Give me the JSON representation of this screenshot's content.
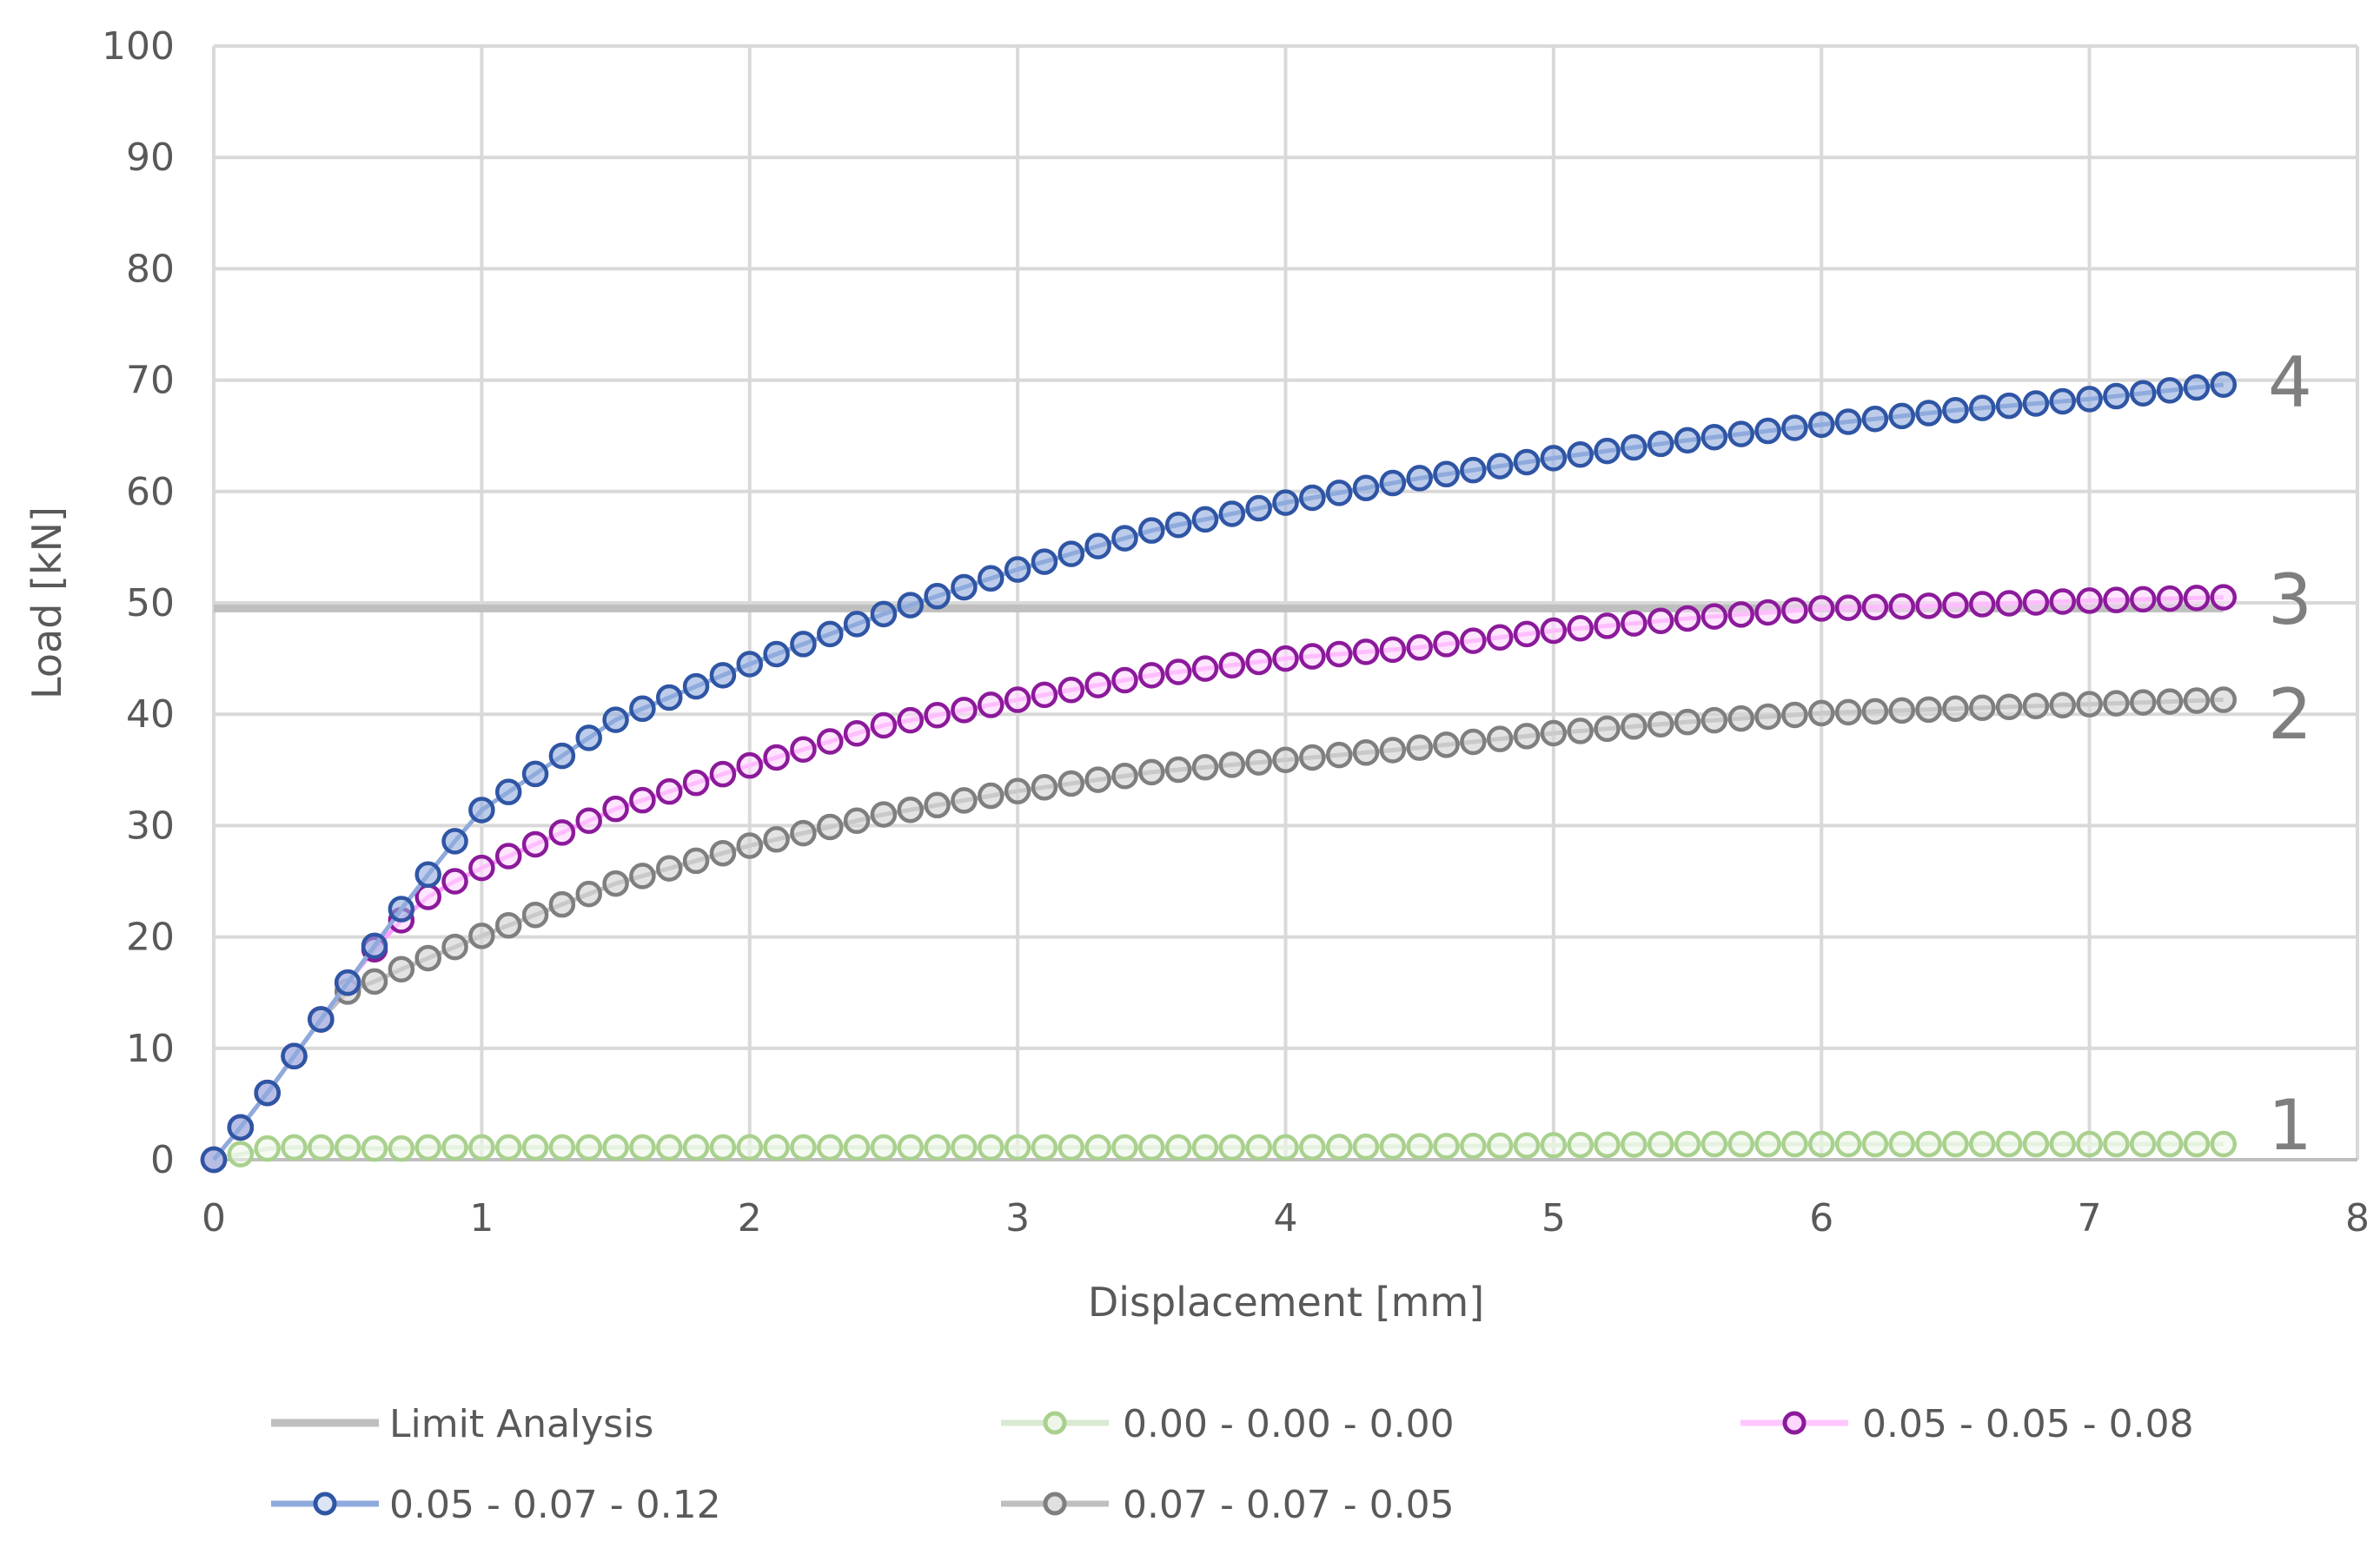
{
  "chart_data": {
    "type": "line",
    "title": "",
    "xlabel": "Displacement [mm]",
    "ylabel": "Load [kN]",
    "xlim": [
      0,
      8
    ],
    "ylim": [
      0,
      100
    ],
    "xticks": [
      "0",
      "1",
      "2",
      "3",
      "4",
      "5",
      "6",
      "7",
      "8"
    ],
    "yticks": [
      "0",
      "10",
      "20",
      "30",
      "40",
      "50",
      "60",
      "70",
      "80",
      "90",
      "100"
    ],
    "grid": true,
    "legend_position": "bottom",
    "x": [
      0,
      0.1,
      0.2,
      0.3,
      0.4,
      0.5,
      0.6,
      0.7,
      0.8,
      0.9,
      1.0,
      1.5,
      2.0,
      2.5,
      3.0,
      3.5,
      4.0,
      4.5,
      5.0,
      5.5,
      6.0,
      6.5,
      7.0,
      7.5
    ],
    "series": [
      {
        "name": "Limit Analysis",
        "style": "line",
        "color": "#bfbfbf",
        "values_x": [
          0,
          7.5
        ],
        "values": [
          49.5,
          49.5
        ]
      },
      {
        "name": "0.00 - 0.00 - 0.00",
        "style": "markers",
        "color": "#a9d18e",
        "label": "1",
        "values": [
          0,
          0.5,
          1.0,
          1.1,
          1.1,
          1.1,
          1.0,
          1.0,
          1.1,
          1.1,
          1.1,
          1.1,
          1.1,
          1.1,
          1.1,
          1.1,
          1.1,
          1.2,
          1.3,
          1.4,
          1.4,
          1.4,
          1.4,
          1.4
        ]
      },
      {
        "name": "0.05 - 0.05 - 0.08",
        "style": "markers",
        "color": "#8b1a9a",
        "fill": "#ffd6ff",
        "label": "3",
        "values": [
          0,
          2.9,
          6.0,
          9.3,
          12.6,
          15.9,
          18.9,
          21.5,
          23.6,
          25.0,
          26.2,
          31.5,
          35.4,
          39.0,
          41.3,
          43.5,
          45.0,
          46.0,
          47.5,
          48.6,
          49.5,
          49.8,
          50.2,
          50.5
        ]
      },
      {
        "name": "0.05 - 0.07 - 0.12",
        "style": "markers",
        "color": "#2f55a4",
        "fill": "#8faadc",
        "label": "4",
        "values": [
          0,
          2.9,
          6.0,
          9.3,
          12.6,
          15.9,
          19.2,
          22.5,
          25.6,
          28.6,
          31.4,
          39.5,
          44.5,
          49.0,
          53.0,
          56.5,
          59.0,
          61.2,
          63.0,
          64.6,
          66.0,
          67.3,
          68.3,
          69.6
        ]
      },
      {
        "name": "0.07 - 0.07 - 0.05",
        "style": "markers",
        "color": "#7f7f7f",
        "fill": "#d0d0d0",
        "label": "2",
        "values": [
          0,
          2.9,
          6.0,
          9.3,
          12.6,
          15.1,
          16.0,
          17.1,
          18.1,
          19.1,
          20.1,
          24.8,
          28.2,
          31.0,
          33.1,
          34.8,
          35.9,
          37.0,
          38.3,
          39.3,
          40.1,
          40.5,
          40.9,
          41.3
        ]
      }
    ],
    "annotations": [
      "1",
      "2",
      "3",
      "4"
    ]
  },
  "legend": {
    "items": [
      {
        "label": "Limit Analysis",
        "color": "#bfbfbf"
      },
      {
        "label": "0.00 - 0.00 - 0.00",
        "color": "#a9d18e"
      },
      {
        "label": "0.05 - 0.05 - 0.08",
        "color": "#8b1a9a"
      },
      {
        "label": "0.05 - 0.07 - 0.12",
        "color": "#2f55a4"
      },
      {
        "label": "0.07 - 0.07 - 0.05",
        "color": "#7f7f7f"
      }
    ]
  },
  "labels": {
    "c1": "1",
    "c2": "2",
    "c3": "3",
    "c4": "4"
  }
}
